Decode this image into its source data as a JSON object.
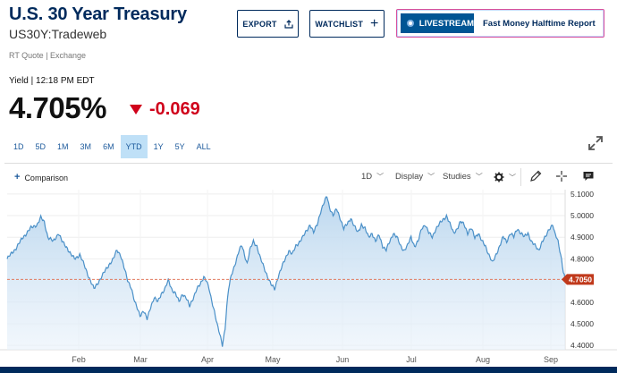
{
  "header": {
    "title": "U.S. 30 Year Treasury",
    "symbol": "US30Y:Tradeweb",
    "quote_source": "RT Quote | Exchange"
  },
  "buttons": {
    "export": "EXPORT",
    "watchlist": "WATCHLIST",
    "livestream": "LIVESTREAM",
    "livestream_show": "Fast Money Halftime Report"
  },
  "quote": {
    "label": "Yield | 12:18 PM EDT",
    "value": "4.705%",
    "change": "-0.069"
  },
  "ranges": [
    "1D",
    "5D",
    "1M",
    "3M",
    "6M",
    "YTD",
    "1Y",
    "5Y",
    "ALL"
  ],
  "active_range": "YTD",
  "toolbar": {
    "comparison": "Comparison",
    "interval": "1D",
    "display": "Display",
    "studies": "Studies"
  },
  "colors": {
    "brand": "#002a5c",
    "negative": "#d0021b",
    "line": "#4a90c8",
    "last_marker": "#c0391b"
  },
  "chart_data": {
    "type": "area",
    "x_labels": [
      "Feb",
      "Mar",
      "Apr",
      "May",
      "Jun",
      "Jul",
      "Aug",
      "Sep"
    ],
    "y_ticks": [
      "5.1000",
      "5.0000",
      "4.9000",
      "4.8000",
      "4.6000",
      "4.5000",
      "4.4000"
    ],
    "last_value_label": "4.7050",
    "ylim": [
      4.38,
      5.12
    ],
    "reference_line": 4.705,
    "grid": true,
    "x": [
      0,
      1,
      2,
      3,
      4,
      5,
      6,
      7,
      8,
      9,
      10,
      11,
      12,
      13,
      14,
      15,
      16,
      17,
      18,
      19,
      20,
      21,
      22,
      23,
      24,
      25,
      26,
      27,
      28,
      29,
      30,
      31,
      32,
      33,
      34,
      35,
      36,
      37,
      38,
      39,
      40,
      41,
      42,
      43,
      44,
      45,
      46,
      47,
      48,
      49,
      50,
      51,
      52,
      53,
      54,
      55,
      56,
      57,
      58,
      59,
      60,
      61,
      62,
      63,
      64,
      65,
      66,
      67,
      68,
      69,
      70,
      71,
      72,
      73,
      74,
      75,
      76,
      77,
      78,
      79,
      80,
      81,
      82,
      83,
      84,
      85,
      86,
      87,
      88,
      89,
      90,
      91,
      92,
      93,
      94,
      95,
      96,
      97,
      98,
      99,
      100,
      101,
      102,
      103,
      104,
      105,
      106,
      107,
      108,
      109,
      110,
      111,
      112,
      113,
      114,
      115,
      116,
      117,
      118,
      119,
      120,
      121,
      122,
      123,
      124,
      125,
      126,
      127,
      128,
      129,
      130,
      131,
      132,
      133,
      134,
      135,
      136,
      137,
      138,
      139,
      140,
      141,
      142,
      143,
      144,
      145,
      146,
      147,
      148,
      149,
      150,
      151,
      152,
      153,
      154,
      155,
      156,
      157,
      158,
      159,
      160,
      161,
      162,
      163,
      164,
      165,
      166,
      167,
      168,
      169,
      170,
      171,
      172,
      173,
      174,
      175,
      176,
      177,
      178,
      179,
      180,
      181,
      182,
      183,
      184,
      185,
      186,
      187,
      188,
      189,
      190,
      191,
      192,
      193,
      194,
      195,
      196,
      197,
      198,
      199,
      200,
      201,
      202,
      203,
      204,
      205,
      206,
      207,
      208,
      209,
      210,
      211,
      212,
      213,
      214,
      215,
      216,
      217,
      218,
      219,
      220,
      221,
      222,
      223,
      224,
      225,
      226,
      227,
      228,
      229,
      230,
      231,
      232,
      233,
      234,
      235,
      236,
      237,
      238,
      239,
      240,
      241,
      242,
      243,
      244,
      245,
      246,
      247,
      248,
      249,
      250,
      251,
      252,
      253,
      254,
      255,
      256,
      257,
      258,
      259,
      260,
      261,
      262,
      263,
      264,
      265,
      266,
      267,
      268,
      269,
      270,
      271,
      272,
      273,
      274,
      275,
      276,
      277,
      278,
      279,
      280,
      281,
      282,
      283,
      284,
      285,
      286,
      287,
      288,
      289,
      290,
      291,
      292,
      293,
      294,
      295,
      296,
      297,
      298,
      299,
      300,
      301,
      302,
      303,
      304,
      305,
      306,
      307,
      308,
      309,
      310,
      311,
      312,
      313,
      314,
      315,
      316,
      317,
      318,
      319,
      320,
      321,
      322,
      323,
      324,
      325,
      326,
      327,
      328,
      329,
      330,
      331,
      332,
      333,
      334,
      335,
      336,
      337,
      338,
      339,
      340,
      341,
      342,
      343,
      344,
      345,
      346,
      347,
      348,
      349,
      350,
      351,
      352,
      353,
      354,
      355,
      356,
      357,
      358,
      359,
      360,
      361,
      362,
      363,
      364,
      365,
      366,
      367,
      368,
      369,
      370,
      371,
      372,
      373,
      374,
      375,
      376,
      377,
      378,
      379,
      380,
      381,
      382,
      383,
      384,
      385,
      386,
      387,
      388,
      389,
      390,
      391,
      392,
      393,
      394,
      395,
      396,
      397,
      398,
      399,
      400,
      401,
      402,
      403,
      404,
      405,
      406,
      407,
      408,
      409,
      410,
      411,
      412,
      413,
      414,
      415,
      416,
      417,
      418,
      419,
      420,
      421,
      422,
      423,
      424,
      425,
      426,
      427,
      428,
      429,
      430,
      431,
      432,
      433,
      434,
      435,
      436,
      437,
      438,
      439,
      440,
      441,
      442,
      443,
      444,
      445,
      446,
      447,
      448,
      449,
      450,
      451,
      452,
      453,
      454,
      455,
      456,
      457,
      458,
      459,
      460,
      461,
      462,
      463,
      464,
      465,
      466,
      467,
      468,
      469,
      470,
      471,
      472,
      473,
      474,
      475,
      476,
      477,
      478,
      479,
      480,
      481,
      482,
      483,
      484,
      485,
      486,
      487,
      488,
      489,
      490,
      491,
      492,
      493,
      494,
      495,
      496,
      497,
      498,
      499,
      500,
      501,
      502,
      503,
      504,
      505,
      506,
      507,
      508,
      509,
      510,
      511,
      512,
      513,
      514,
      515,
      516,
      517,
      518,
      519,
      520,
      521,
      522,
      523,
      524,
      525,
      526,
      527,
      528,
      529,
      530,
      531,
      532,
      533,
      534,
      535,
      536,
      537,
      538,
      539,
      540,
      541,
      542,
      543,
      544,
      545,
      546,
      547,
      548,
      549,
      550,
      551,
      552,
      553,
      554,
      555,
      556,
      557,
      558,
      559,
      560,
      561,
      562,
      563,
      564,
      565,
      566,
      567,
      568,
      569,
      570,
      571,
      572,
      573,
      574,
      575,
      576,
      577,
      578,
      579,
      580,
      581,
      582,
      583,
      584,
      585,
      586,
      587,
      588,
      589,
      590,
      591,
      592,
      593,
      594,
      595,
      596,
      597,
      598,
      599,
      600,
      601,
      602,
      603,
      604,
      605,
      606,
      607,
      608,
      609,
      610,
      611,
      612,
      613,
      614,
      615,
      616,
      617,
      618,
      619,
      620,
      621,
      622,
      623,
      624,
      625,
      626,
      627,
      628,
      629,
      630
    ],
    "y_keypoints": [
      [
        0,
        4.8
      ],
      [
        10,
        4.85
      ],
      [
        18,
        4.9
      ],
      [
        26,
        4.94
      ],
      [
        34,
        4.96
      ],
      [
        38,
        4.99
      ],
      [
        42,
        4.97
      ],
      [
        46,
        4.9
      ],
      [
        52,
        4.88
      ],
      [
        58,
        4.92
      ],
      [
        62,
        4.88
      ],
      [
        68,
        4.85
      ],
      [
        72,
        4.82
      ],
      [
        76,
        4.8
      ],
      [
        82,
        4.82
      ],
      [
        86,
        4.78
      ],
      [
        90,
        4.74
      ],
      [
        94,
        4.7
      ],
      [
        98,
        4.66
      ],
      [
        104,
        4.7
      ],
      [
        110,
        4.74
      ],
      [
        116,
        4.78
      ],
      [
        120,
        4.8
      ],
      [
        124,
        4.84
      ],
      [
        128,
        4.82
      ],
      [
        132,
        4.76
      ],
      [
        136,
        4.7
      ],
      [
        140,
        4.67
      ],
      [
        144,
        4.6
      ],
      [
        148,
        4.56
      ],
      [
        150,
        4.54
      ],
      [
        154,
        4.56
      ],
      [
        158,
        4.52
      ],
      [
        162,
        4.58
      ],
      [
        166,
        4.62
      ],
      [
        170,
        4.6
      ],
      [
        174,
        4.64
      ],
      [
        178,
        4.66
      ],
      [
        182,
        4.7
      ],
      [
        186,
        4.66
      ],
      [
        190,
        4.64
      ],
      [
        194,
        4.6
      ],
      [
        198,
        4.64
      ],
      [
        202,
        4.62
      ],
      [
        206,
        4.58
      ],
      [
        210,
        4.62
      ],
      [
        214,
        4.66
      ],
      [
        218,
        4.68
      ],
      [
        222,
        4.72
      ],
      [
        225,
        4.7
      ],
      [
        228,
        4.66
      ],
      [
        230,
        4.62
      ],
      [
        234,
        4.56
      ],
      [
        237,
        4.5
      ],
      [
        240,
        4.45
      ],
      [
        243,
        4.4
      ],
      [
        246,
        4.48
      ],
      [
        248,
        4.58
      ],
      [
        250,
        4.66
      ],
      [
        253,
        4.72
      ],
      [
        256,
        4.76
      ],
      [
        259,
        4.8
      ],
      [
        262,
        4.84
      ],
      [
        265,
        4.86
      ],
      [
        268,
        4.82
      ],
      [
        271,
        4.78
      ],
      [
        274,
        4.84
      ],
      [
        278,
        4.88
      ],
      [
        282,
        4.86
      ],
      [
        286,
        4.8
      ],
      [
        290,
        4.76
      ],
      [
        294,
        4.72
      ],
      [
        298,
        4.68
      ],
      [
        302,
        4.66
      ],
      [
        306,
        4.72
      ],
      [
        310,
        4.76
      ],
      [
        314,
        4.8
      ],
      [
        318,
        4.84
      ],
      [
        322,
        4.82
      ],
      [
        326,
        4.86
      ],
      [
        330,
        4.88
      ],
      [
        334,
        4.9
      ],
      [
        338,
        4.93
      ],
      [
        342,
        4.96
      ],
      [
        346,
        4.92
      ],
      [
        350,
        4.96
      ],
      [
        354,
        5.02
      ],
      [
        358,
        5.06
      ],
      [
        361,
        5.09
      ],
      [
        364,
        5.04
      ],
      [
        368,
        5.0
      ],
      [
        372,
        5.03
      ],
      [
        376,
        4.99
      ],
      [
        380,
        4.94
      ],
      [
        384,
        4.96
      ],
      [
        388,
        4.99
      ],
      [
        392,
        4.95
      ],
      [
        396,
        4.92
      ],
      [
        400,
        4.96
      ],
      [
        404,
        4.94
      ],
      [
        408,
        4.9
      ],
      [
        412,
        4.92
      ],
      [
        416,
        4.88
      ],
      [
        420,
        4.91
      ],
      [
        424,
        4.86
      ],
      [
        428,
        4.84
      ],
      [
        432,
        4.88
      ],
      [
        436,
        4.92
      ],
      [
        440,
        4.9
      ],
      [
        444,
        4.86
      ],
      [
        448,
        4.84
      ],
      [
        452,
        4.86
      ],
      [
        456,
        4.9
      ],
      [
        460,
        4.86
      ],
      [
        464,
        4.88
      ],
      [
        468,
        4.94
      ],
      [
        472,
        4.96
      ],
      [
        476,
        4.92
      ],
      [
        480,
        4.9
      ],
      [
        484,
        4.94
      ],
      [
        488,
        4.96
      ],
      [
        492,
        4.98
      ],
      [
        496,
        5.0
      ],
      [
        500,
        4.96
      ],
      [
        504,
        4.92
      ],
      [
        508,
        4.94
      ],
      [
        512,
        4.97
      ],
      [
        516,
        4.96
      ],
      [
        520,
        4.92
      ],
      [
        524,
        4.94
      ],
      [
        528,
        4.9
      ],
      [
        532,
        4.92
      ],
      [
        536,
        4.88
      ],
      [
        540,
        4.86
      ],
      [
        544,
        4.82
      ],
      [
        548,
        4.78
      ],
      [
        552,
        4.82
      ],
      [
        556,
        4.86
      ],
      [
        560,
        4.9
      ],
      [
        564,
        4.88
      ],
      [
        568,
        4.92
      ],
      [
        572,
        4.9
      ],
      [
        576,
        4.94
      ],
      [
        580,
        4.92
      ],
      [
        584,
        4.9
      ],
      [
        588,
        4.92
      ],
      [
        592,
        4.88
      ],
      [
        596,
        4.86
      ],
      [
        600,
        4.84
      ],
      [
        604,
        4.88
      ],
      [
        608,
        4.9
      ],
      [
        612,
        4.94
      ],
      [
        616,
        4.96
      ],
      [
        618,
        4.92
      ],
      [
        620,
        4.9
      ],
      [
        622,
        4.88
      ],
      [
        624,
        4.84
      ],
      [
        626,
        4.8
      ],
      [
        628,
        4.74
      ],
      [
        630,
        4.705
      ]
    ]
  }
}
